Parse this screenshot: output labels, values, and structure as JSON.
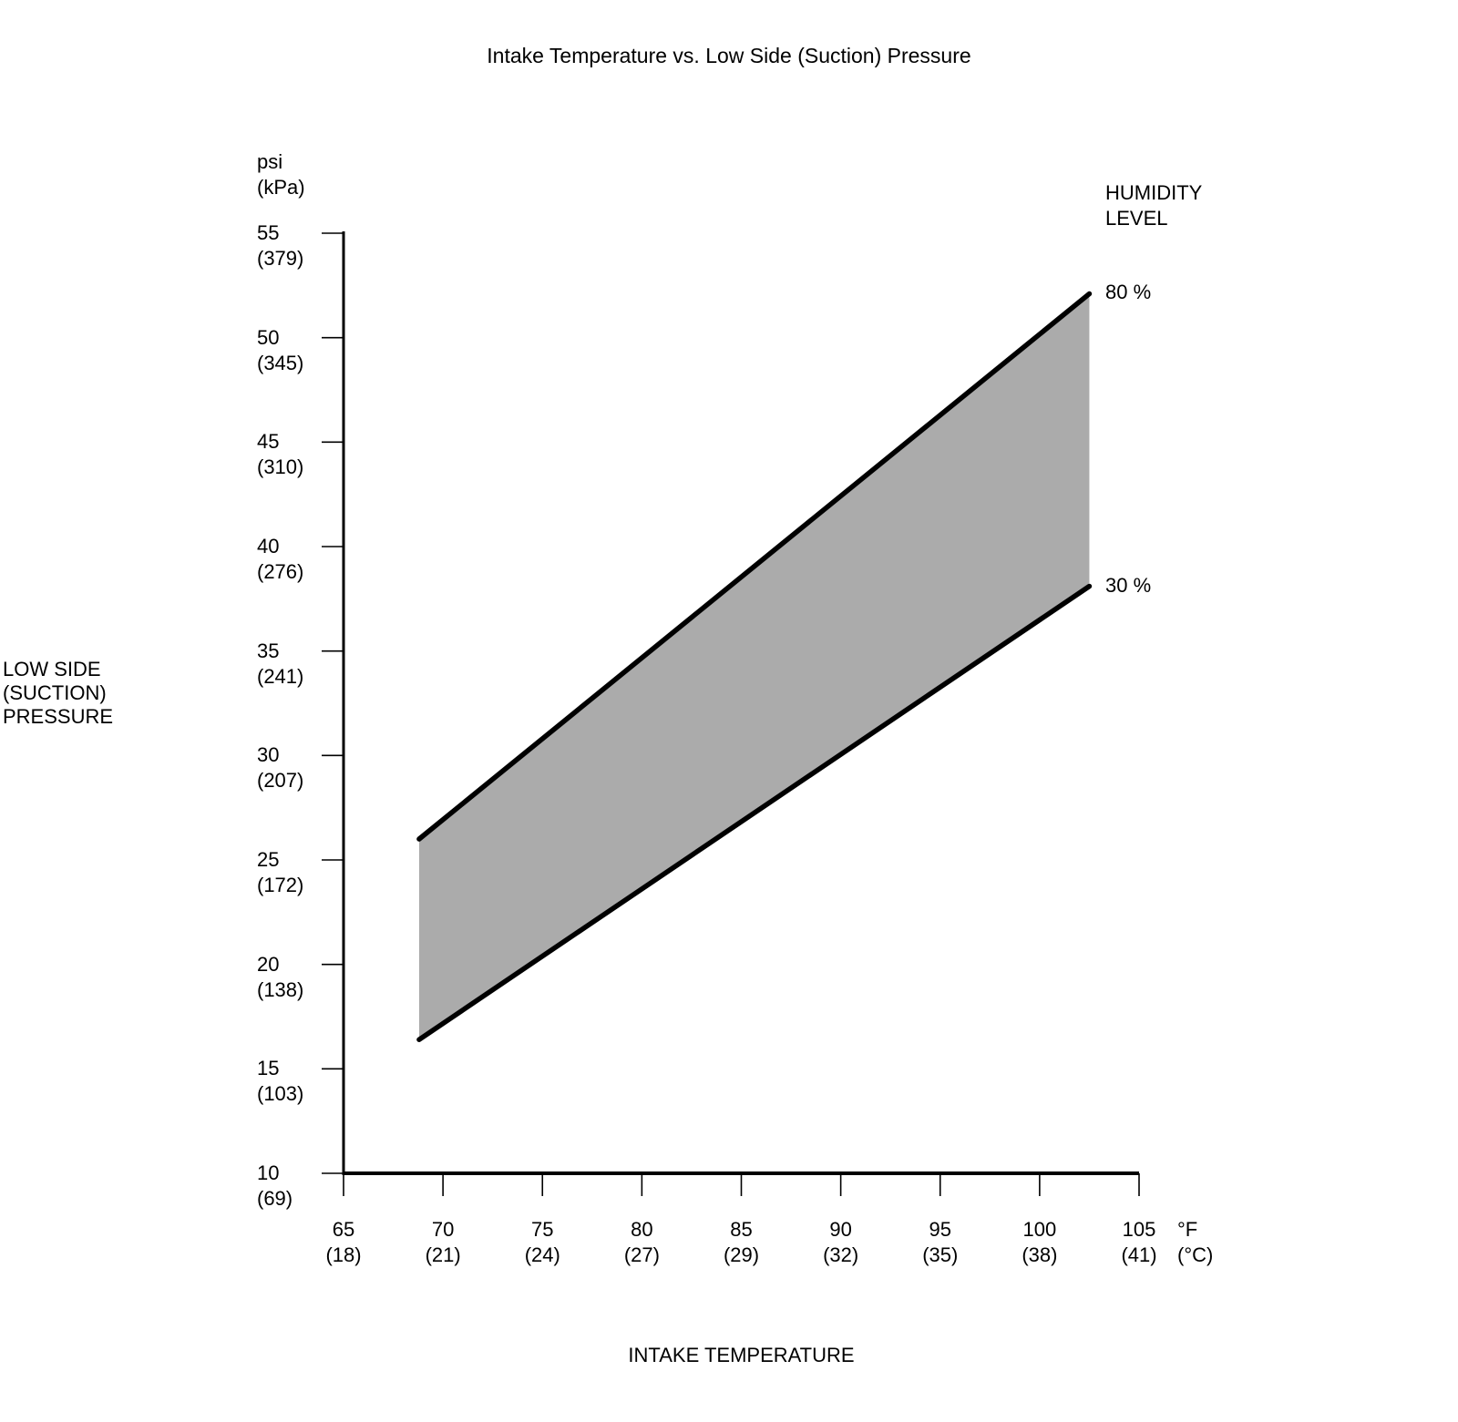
{
  "chart_data": {
    "type": "area",
    "title": "Intake Temperature vs. Low Side (Suction) Pressure",
    "xlabel": "INTAKE TEMPERATURE",
    "ylabel_lines": [
      "LOW SIDE",
      "(SUCTION)",
      "PRESSURE"
    ],
    "y_unit_lines": [
      "psi",
      "(kPa)"
    ],
    "x_unit_lines": [
      "°F",
      "(°C)"
    ],
    "x_axis": {
      "min": 65,
      "max": 105,
      "ticks": [
        {
          "value": 65,
          "label": "65",
          "sub": "(18)"
        },
        {
          "value": 70,
          "label": "70",
          "sub": "(21)"
        },
        {
          "value": 75,
          "label": "75",
          "sub": "(24)"
        },
        {
          "value": 80,
          "label": "80",
          "sub": "(27)"
        },
        {
          "value": 85,
          "label": "85",
          "sub": "(29)"
        },
        {
          "value": 90,
          "label": "90",
          "sub": "(32)"
        },
        {
          "value": 95,
          "label": "95",
          "sub": "(35)"
        },
        {
          "value": 100,
          "label": "100",
          "sub": "(38)"
        },
        {
          "value": 105,
          "label": "105",
          "sub": "(41)"
        }
      ]
    },
    "y_axis": {
      "min": 10,
      "max": 55,
      "ticks": [
        {
          "value": 55,
          "label": "55",
          "sub": "(379)"
        },
        {
          "value": 50,
          "label": "50",
          "sub": "(345)"
        },
        {
          "value": 45,
          "label": "45",
          "sub": "(310)"
        },
        {
          "value": 40,
          "label": "40",
          "sub": "(276)"
        },
        {
          "value": 35,
          "label": "35",
          "sub": "(241)"
        },
        {
          "value": 30,
          "label": "30",
          "sub": "(207)"
        },
        {
          "value": 25,
          "label": "25",
          "sub": "(172)"
        },
        {
          "value": 20,
          "label": "20",
          "sub": "(138)"
        },
        {
          "value": 15,
          "label": "15",
          "sub": "(103)"
        },
        {
          "value": 10,
          "label": "10",
          "sub": "(69)"
        }
      ]
    },
    "legend": {
      "title_lines": [
        "HUMIDITY",
        "LEVEL"
      ],
      "entries": [
        "80 %",
        "30 %"
      ],
      "position": "right"
    },
    "series": [
      {
        "name": "80 %",
        "points": [
          {
            "x": 68.8,
            "y": 26.0
          },
          {
            "x": 102.5,
            "y": 52.1
          }
        ]
      },
      {
        "name": "30 %",
        "points": [
          {
            "x": 68.8,
            "y": 16.4
          },
          {
            "x": 102.5,
            "y": 38.1
          }
        ]
      }
    ],
    "band_fill": "#ababab",
    "line_color": "#000000",
    "axis_color": "#000000",
    "grid": false,
    "xlim": [
      65,
      105
    ],
    "ylim": [
      10,
      55
    ]
  }
}
